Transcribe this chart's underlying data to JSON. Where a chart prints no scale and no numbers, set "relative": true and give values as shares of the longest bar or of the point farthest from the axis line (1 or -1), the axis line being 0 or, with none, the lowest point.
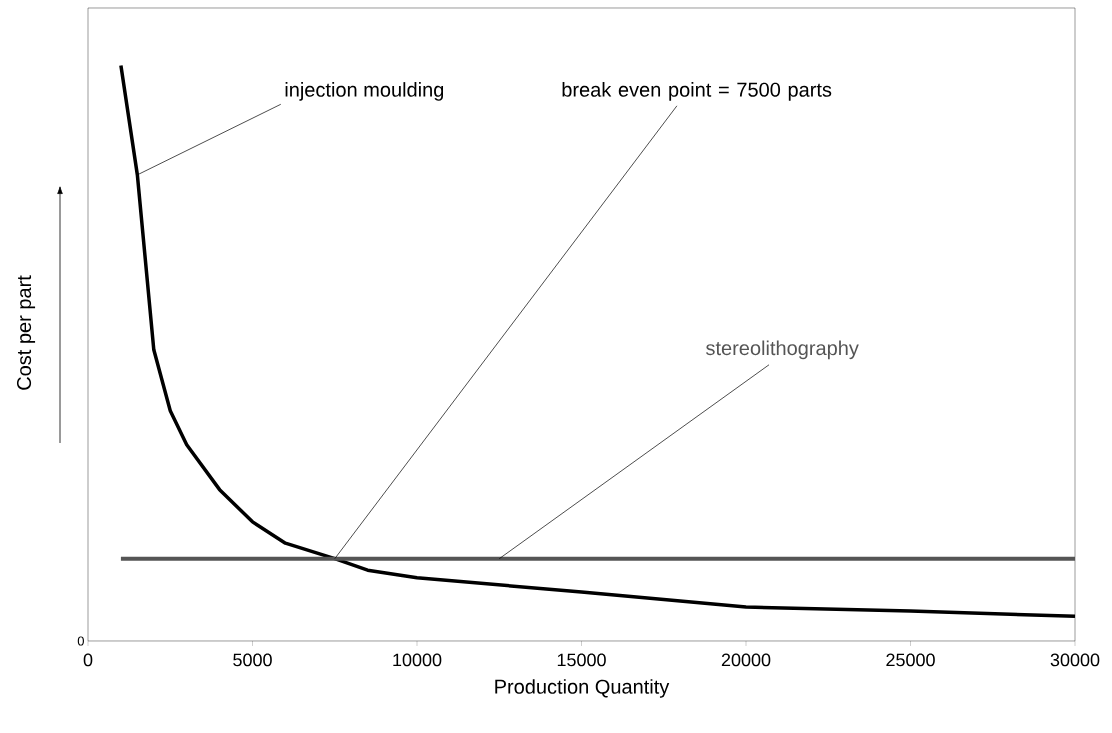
{
  "chart_data": {
    "type": "line",
    "relative": true,
    "xlabel": "Production Quantity",
    "ylabel": "Cost per part",
    "xlim": [
      0,
      30000
    ],
    "xticks": [
      0,
      5000,
      10000,
      15000,
      20000,
      25000,
      30000
    ],
    "grid": false,
    "legend": false,
    "marker": "none",
    "line_style": "solid",
    "series": [
      {
        "name": "injection moulding",
        "color": "#000000",
        "x": [
          1000,
          1500,
          2000,
          2500,
          3000,
          4000,
          5000,
          6000,
          7500,
          8500,
          10000,
          15000,
          20000,
          25000,
          30000
        ],
        "values": [
          1.0,
          0.81,
          0.506,
          0.4,
          0.341,
          0.263,
          0.207,
          0.17,
          0.143,
          0.123,
          0.11,
          0.085,
          0.059,
          0.052,
          0.043
        ]
      },
      {
        "name": "stereolithography",
        "color": "#555555",
        "x": [
          1000,
          30000
        ],
        "values": [
          0.143,
          0.143
        ]
      }
    ],
    "annotations": [
      {
        "text": "break even point = 7500 parts",
        "x": 7500,
        "y": 0.143
      },
      "0"
    ]
  }
}
